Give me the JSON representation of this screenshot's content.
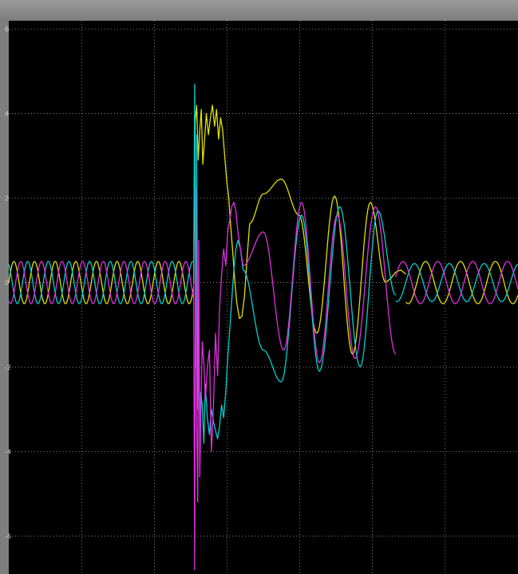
{
  "chart_data": {
    "type": "line",
    "title": "",
    "xlabel": "",
    "ylabel": "",
    "background": "#000000",
    "grid": true,
    "ylim": [
      -6.9,
      6.2
    ],
    "xlim": [
      0,
      1
    ],
    "y_ticks": [
      -6,
      -4,
      -2,
      0,
      2,
      4,
      6
    ],
    "y_tick_labels": [
      "-6",
      "-4",
      "-2",
      "0",
      "2",
      "4",
      "6"
    ],
    "x_grid": [
      0.0,
      0.143,
      0.286,
      0.429,
      0.571,
      0.714,
      0.857,
      1.0
    ],
    "series": [
      {
        "color": "#e0e000",
        "segments": [
          {
            "kind": "sine",
            "x0": 0.0,
            "x1": 0.363,
            "amp": 0.5,
            "period": 0.0405,
            "phase": 0.0
          },
          {
            "kind": "points",
            "x": [
              0.363,
              0.366,
              0.369,
              0.372,
              0.375,
              0.378,
              0.381,
              0.384,
              0.388,
              0.392,
              0.396,
              0.4,
              0.404,
              0.408,
              0.412,
              0.416,
              0.42,
              0.424,
              0.428,
              0.432,
              0.436,
              0.44,
              0.444,
              0.448,
              0.453,
              0.458,
              0.463,
              0.468,
              0.473
            ],
            "y": [
              0.0,
              3.8,
              4.2,
              2.9,
              3.6,
              4.1,
              2.8,
              3.3,
              4.0,
              3.5,
              3.9,
              4.2,
              3.7,
              4.1,
              3.4,
              3.9,
              3.6,
              3.0,
              2.4,
              2.0,
              1.3,
              0.7,
              0.0,
              -0.5,
              -0.85,
              -0.8,
              -0.3,
              0.6,
              1.4
            ]
          },
          {
            "kind": "damped",
            "x0": 0.473,
            "x1": 0.74,
            "x": [
              0.473,
              0.5,
              0.535,
              0.57,
              0.605,
              0.64,
              0.675,
              0.71,
              0.74
            ],
            "y": [
              1.4,
              2.1,
              2.45,
              1.6,
              -1.2,
              2.05,
              -1.7,
              1.9,
              0.0
            ]
          },
          {
            "kind": "points",
            "x": [
              0.74,
              0.75,
              0.76,
              0.77,
              0.78
            ],
            "y": [
              0.0,
              0.1,
              0.25,
              0.3,
              0.2
            ]
          },
          {
            "kind": "sine",
            "x0": 0.78,
            "x1": 1.0,
            "amp": 0.5,
            "period": 0.0685,
            "phase": 0.3
          }
        ]
      },
      {
        "color": "#00d0d0",
        "segments": [
          {
            "kind": "sine",
            "x0": 0.0,
            "x1": 0.363,
            "amp": 0.5,
            "period": 0.0405,
            "phase": 0.333
          },
          {
            "kind": "points",
            "x": [
              0.363,
              0.365,
              0.367,
              0.369,
              0.371,
              0.373,
              0.375,
              0.377,
              0.38,
              0.383,
              0.386,
              0.39,
              0.394,
              0.398,
              0.402,
              0.406,
              0.41,
              0.414,
              0.418,
              0.422,
              0.426,
              0.43,
              0.434,
              0.438,
              0.442,
              0.446,
              0.45,
              0.455,
              0.46
            ],
            "y": [
              0.0,
              4.7,
              -2.0,
              3.5,
              -3.0,
              -1.2,
              -3.4,
              -2.6,
              -2.9,
              -3.8,
              -2.4,
              -3.2,
              -3.6,
              -3.0,
              -3.3,
              -3.5,
              -3.7,
              -3.4,
              -2.9,
              -3.2,
              -2.6,
              -1.8,
              -1.1,
              -0.4,
              0.3,
              0.8,
              1.0,
              0.8,
              0.3
            ]
          },
          {
            "kind": "damped",
            "x0": 0.46,
            "x1": 0.76,
            "x": [
              0.46,
              0.5,
              0.535,
              0.575,
              0.61,
              0.65,
              0.69,
              0.725,
              0.76
            ],
            "y": [
              0.3,
              -1.6,
              -2.35,
              1.6,
              -2.1,
              1.8,
              -2.0,
              1.7,
              -0.3
            ]
          },
          {
            "kind": "sine",
            "x0": 0.76,
            "x1": 1.0,
            "amp": 0.45,
            "period": 0.0685,
            "phase": 0.62
          }
        ]
      },
      {
        "color": "#e030e0",
        "segments": [
          {
            "kind": "sine",
            "x0": 0.0,
            "x1": 0.363,
            "amp": 0.5,
            "period": 0.0405,
            "phase": 0.667
          },
          {
            "kind": "points",
            "x": [
              0.363,
              0.365,
              0.367,
              0.369,
              0.371,
              0.373,
              0.375,
              0.377,
              0.38,
              0.383,
              0.386,
              0.39,
              0.394,
              0.398,
              0.402,
              0.406,
              0.41,
              0.414,
              0.418,
              0.422,
              0.426,
              0.43,
              0.434,
              0.438,
              0.442,
              0.446,
              0.45,
              0.455,
              0.46
            ],
            "y": [
              0.0,
              -6.8,
              2.2,
              -3.4,
              -5.2,
              1.0,
              -4.6,
              -3.2,
              -1.4,
              -1.9,
              -2.8,
              -2.0,
              -1.6,
              -4.0,
              -2.9,
              -1.2,
              -2.2,
              -0.6,
              0.2,
              0.8,
              0.4,
              1.2,
              1.5,
              1.8,
              1.9,
              1.7,
              1.2,
              0.8,
              0.4
            ]
          },
          {
            "kind": "damped",
            "x0": 0.46,
            "x1": 0.76,
            "x": [
              0.46,
              0.5,
              0.54,
              0.575,
              0.61,
              0.645,
              0.68,
              0.72,
              0.76
            ],
            "y": [
              0.4,
              1.2,
              -1.6,
              1.9,
              -1.9,
              1.6,
              -1.8,
              1.8,
              -1.7
            ]
          },
          {
            "kind": "sine",
            "x0": 0.76,
            "x1": 1.0,
            "amp": 0.5,
            "period": 0.0685,
            "phase": 0.95
          }
        ]
      }
    ]
  }
}
